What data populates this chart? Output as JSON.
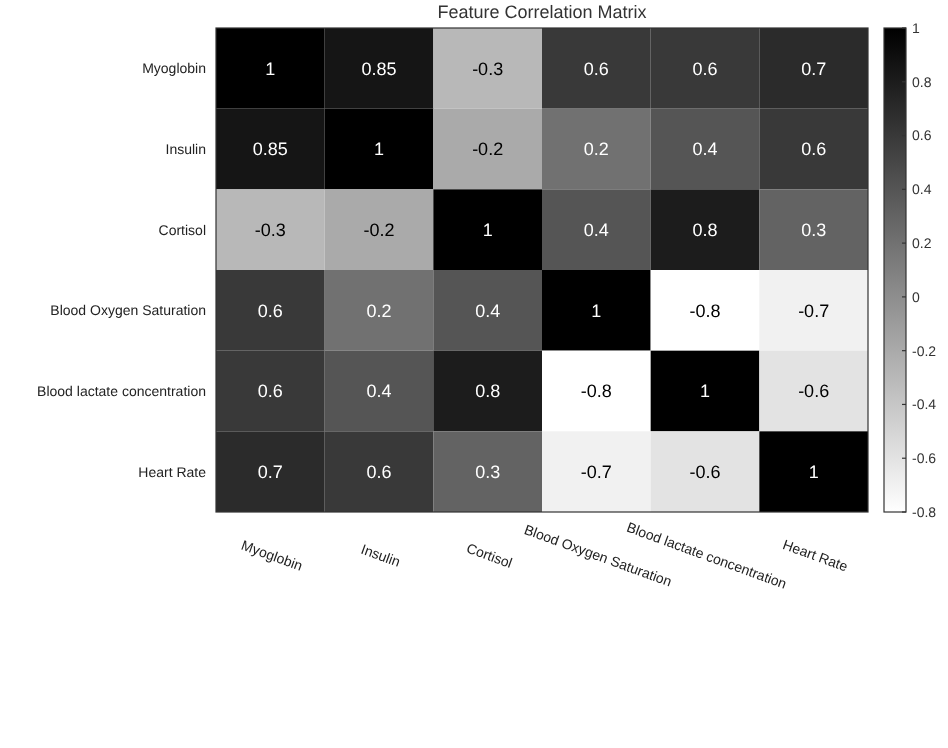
{
  "chart_data": {
    "type": "heatmap",
    "title": "Feature Correlation Matrix",
    "categories": [
      "Myoglobin",
      "Insulin",
      "Cortisol",
      "Blood Oxygen Saturation",
      "Blood lactate concentration",
      "Heart Rate"
    ],
    "y_categories": [
      "Myoglobin",
      "Insulin",
      "Cortisol",
      "Blood Oxygen Saturation",
      "Blood lactate concentration",
      "Heart Rate"
    ],
    "cells": [
      [
        1,
        0.85,
        -0.3,
        0.6,
        0.6,
        0.7
      ],
      [
        0.85,
        1,
        -0.2,
        0.2,
        0.4,
        0.6
      ],
      [
        -0.3,
        -0.2,
        1,
        0.4,
        0.8,
        0.3
      ],
      [
        0.6,
        0.2,
        0.4,
        1,
        -0.8,
        -0.7
      ],
      [
        0.6,
        0.4,
        0.8,
        -0.8,
        1,
        -0.6
      ],
      [
        0.7,
        0.6,
        0.3,
        -0.7,
        -0.6,
        1
      ]
    ],
    "data_labels": true,
    "clim": [
      -0.8,
      1
    ],
    "cticks": [
      1,
      0.8,
      0.6,
      0.4,
      0.2,
      0,
      -0.2,
      -0.4,
      -0.6,
      -0.8
    ]
  }
}
